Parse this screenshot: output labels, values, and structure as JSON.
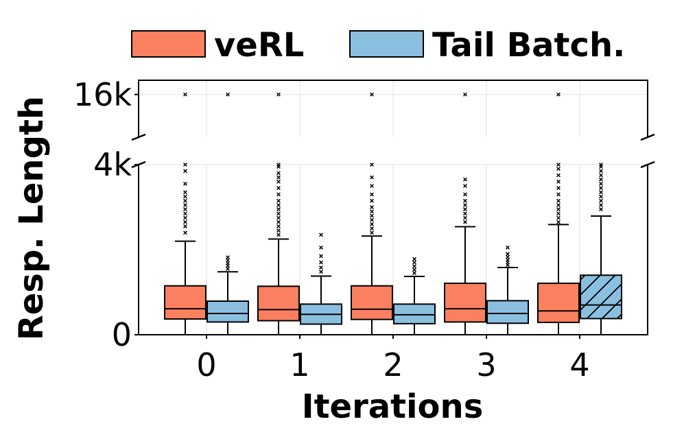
{
  "chart_data": {
    "type": "boxplot",
    "xlabel": "Iterations",
    "ylabel": "Resp. Length",
    "categories": [
      "0",
      "1",
      "2",
      "3",
      "4"
    ],
    "y_ticks": {
      "lower": [
        {
          "value": 0,
          "label": "0"
        },
        {
          "value": 4000,
          "label": "4k"
        }
      ],
      "upper": [
        {
          "value": 16000,
          "label": "16k"
        }
      ]
    },
    "broken_axis": {
      "lower_range": [
        0,
        4000
      ],
      "upper_range": [
        14500,
        16500
      ]
    },
    "grid": true,
    "legend_position": "top",
    "colors": {
      "veRL": "#FA8060",
      "Tail Batch.": "#8BBFE0"
    },
    "series": [
      {
        "name": "veRL",
        "boxes": [
          {
            "category": "0",
            "whislo": 0,
            "q1": 370,
            "med": 610,
            "q3": 1150,
            "whishi": 2200,
            "outliers": [
              2400,
              2550,
              2650,
              2750,
              2850,
              2950,
              3050,
              3150,
              3250,
              3350,
              3550,
              3850,
              4000
            ]
          },
          {
            "category": "1",
            "whislo": 0,
            "q1": 330,
            "med": 590,
            "q3": 1140,
            "whishi": 2250,
            "outliers": [
              2350,
              2450,
              2550,
              2650,
              2750,
              2850,
              2950,
              3050,
              3150,
              3300,
              3450,
              3600,
              3700,
              3800,
              3950,
              4000
            ]
          },
          {
            "category": "2",
            "whislo": 0,
            "q1": 360,
            "med": 600,
            "q3": 1150,
            "whishi": 2320,
            "outliers": [
              2400,
              2500,
              2600,
              2700,
              2800,
              2900,
              3000,
              3150,
              3300,
              3500,
              3700,
              4000
            ]
          },
          {
            "category": "3",
            "whislo": 0,
            "q1": 300,
            "med": 610,
            "q3": 1210,
            "whishi": 2540,
            "outliers": [
              2650,
              2750,
              2850,
              2950,
              3050,
              3150,
              3300,
              3500,
              3650
            ]
          },
          {
            "category": "4",
            "whislo": 0,
            "q1": 290,
            "med": 560,
            "q3": 1210,
            "whishi": 2590,
            "outliers": [
              2650,
              2750,
              2850,
              2950,
              3050,
              3150,
              3300,
              3450,
              3600,
              3750,
              3900,
              4000
            ]
          }
        ],
        "upper_outliers": [
          16000,
          16000,
          16000,
          16000,
          16000
        ]
      },
      {
        "name": "Tail Batch.",
        "boxes": [
          {
            "category": "0",
            "whislo": 0,
            "q1": 300,
            "med": 500,
            "q3": 790,
            "whishi": 1480,
            "outliers": [
              1550,
              1620,
              1680,
              1750,
              1820
            ]
          },
          {
            "category": "1",
            "whislo": 0,
            "q1": 250,
            "med": 480,
            "q3": 720,
            "whishi": 1380,
            "outliers": [
              1480,
              1580,
              1700,
              1850,
              2050,
              2350
            ]
          },
          {
            "category": "2",
            "whislo": 0,
            "q1": 260,
            "med": 470,
            "q3": 720,
            "whishi": 1370,
            "outliers": [
              1450,
              1530,
              1610,
              1700,
              1780
            ]
          },
          {
            "category": "3",
            "whislo": 0,
            "q1": 270,
            "med": 500,
            "q3": 800,
            "whishi": 1580,
            "outliers": [
              1640,
              1700,
              1760,
              1830,
              1900,
              2050
            ]
          },
          {
            "category": "4",
            "whislo": 0,
            "q1": 380,
            "med": 700,
            "q3": 1400,
            "whishi": 2790,
            "outliers": [
              2950,
              3050,
              3150,
              3250,
              3350,
              3450,
              3550,
              3650,
              3750,
              3850,
              3950,
              4000
            ]
          }
        ],
        "upper_outliers": [
          16000
        ]
      }
    ]
  }
}
